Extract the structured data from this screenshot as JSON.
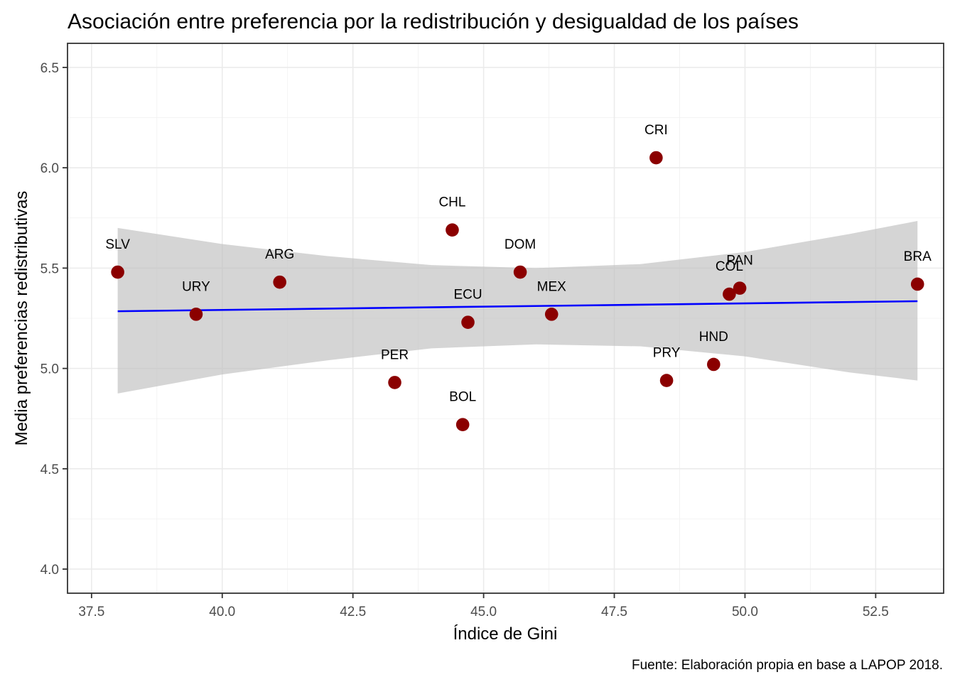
{
  "chart_data": {
    "type": "scatter",
    "title": "Asociación entre preferencia por la redistribución y desigualdad de los países",
    "xlabel": "Índice de Gini",
    "ylabel": "Media preferencias redistributivas",
    "caption": "Fuente: Elaboración propia en base a LAPOP 2018.",
    "xlim": [
      37.04,
      53.8
    ],
    "ylim": [
      3.88,
      6.62
    ],
    "x_ticks": [
      37.5,
      40.0,
      42.5,
      45.0,
      47.5,
      50.0,
      52.5
    ],
    "x_tick_labels": [
      "37.5",
      "40.0",
      "42.5",
      "45.0",
      "47.5",
      "50.0",
      "52.5"
    ],
    "y_ticks": [
      4.0,
      4.5,
      5.0,
      5.5,
      6.0,
      6.5
    ],
    "y_tick_labels": [
      "4.0",
      "4.5",
      "5.0",
      "5.5",
      "6.0",
      "6.5"
    ],
    "grid": true,
    "point_color": "#8b0000",
    "line_color": "#0000ff",
    "band_color": "#bebebe",
    "points": [
      {
        "label": "SLV",
        "x": 38.0,
        "y": 5.48
      },
      {
        "label": "URY",
        "x": 39.5,
        "y": 5.27
      },
      {
        "label": "ARG",
        "x": 41.1,
        "y": 5.43
      },
      {
        "label": "PER",
        "x": 43.3,
        "y": 4.93
      },
      {
        "label": "CHL",
        "x": 44.4,
        "y": 5.69
      },
      {
        "label": "BOL",
        "x": 44.6,
        "y": 4.72
      },
      {
        "label": "ECU",
        "x": 44.7,
        "y": 5.23
      },
      {
        "label": "DOM",
        "x": 45.7,
        "y": 5.48
      },
      {
        "label": "MEX",
        "x": 46.3,
        "y": 5.27
      },
      {
        "label": "CRI",
        "x": 48.3,
        "y": 6.05
      },
      {
        "label": "PRY",
        "x": 48.5,
        "y": 4.94
      },
      {
        "label": "HND",
        "x": 49.4,
        "y": 5.02
      },
      {
        "label": "COL",
        "x": 49.7,
        "y": 5.37
      },
      {
        "label": "PAN",
        "x": 49.9,
        "y": 5.4
      },
      {
        "label": "BRA",
        "x": 53.3,
        "y": 5.42
      }
    ],
    "regression": {
      "method": "lm",
      "x_range": [
        38.0,
        53.3
      ],
      "y_at_start": 5.285,
      "y_at_end": 5.335,
      "ci_band": [
        {
          "x": 38.0,
          "lower": 4.875,
          "upper": 5.7
        },
        {
          "x": 40.0,
          "lower": 4.97,
          "upper": 5.62
        },
        {
          "x": 42.0,
          "lower": 5.04,
          "upper": 5.56
        },
        {
          "x": 44.0,
          "lower": 5.1,
          "upper": 5.515
        },
        {
          "x": 46.0,
          "lower": 5.12,
          "upper": 5.5
        },
        {
          "x": 48.0,
          "lower": 5.11,
          "upper": 5.52
        },
        {
          "x": 50.0,
          "lower": 5.06,
          "upper": 5.58
        },
        {
          "x": 52.0,
          "lower": 4.98,
          "upper": 5.67
        },
        {
          "x": 53.3,
          "lower": 4.94,
          "upper": 5.735
        }
      ]
    }
  }
}
